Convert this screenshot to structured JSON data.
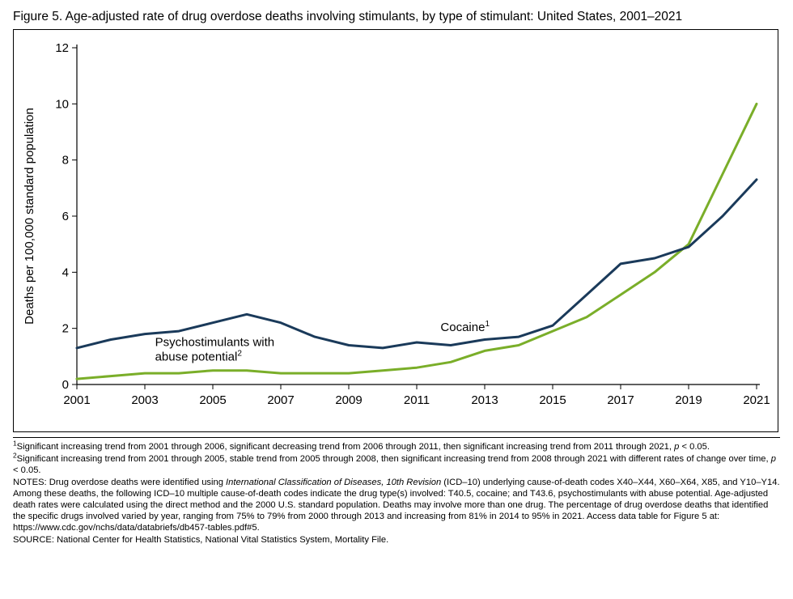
{
  "figure": {
    "title": "Figure 5. Age-adjusted rate of drug overdose deaths involving stimulants, by type of stimulant: United States, 2001–2021"
  },
  "chart": {
    "type": "line",
    "background_color": "#ffffff",
    "frame_border_color": "#000000",
    "xlim": [
      2001,
      2021
    ],
    "ylim": [
      0,
      12
    ],
    "xtick_step": 2,
    "xticks": [
      2001,
      2003,
      2005,
      2007,
      2009,
      2011,
      2013,
      2015,
      2017,
      2019,
      2021
    ],
    "ytick_step": 2,
    "yticks": [
      0,
      2,
      4,
      6,
      8,
      10,
      12
    ],
    "ylabel": "Deaths per 100,000 standard population",
    "axis_color": "#000000",
    "tick_color": "#000000",
    "tick_font_size": 15,
    "label_font_size": 15,
    "line_width": 3,
    "series": {
      "cocaine": {
        "label": "Cocaine",
        "superscript": "1",
        "color": "#1a3a5a",
        "years": [
          2001,
          2002,
          2003,
          2004,
          2005,
          2006,
          2007,
          2008,
          2009,
          2010,
          2011,
          2012,
          2013,
          2014,
          2015,
          2016,
          2017,
          2018,
          2019,
          2020,
          2021
        ],
        "values": [
          1.3,
          1.6,
          1.8,
          1.9,
          2.2,
          2.5,
          2.2,
          1.7,
          1.4,
          1.3,
          1.5,
          1.4,
          1.6,
          1.7,
          2.1,
          3.2,
          4.3,
          4.5,
          4.9,
          6.0,
          7.3
        ]
      },
      "psychostimulants": {
        "label_line1": "Psychostimulants with",
        "label_line2": "abuse potential",
        "superscript": "2",
        "color": "#7aae29",
        "years": [
          2001,
          2002,
          2003,
          2004,
          2005,
          2006,
          2007,
          2008,
          2009,
          2010,
          2011,
          2012,
          2013,
          2014,
          2015,
          2016,
          2017,
          2018,
          2019,
          2020,
          2021
        ],
        "values": [
          0.2,
          0.3,
          0.4,
          0.4,
          0.5,
          0.5,
          0.4,
          0.4,
          0.4,
          0.5,
          0.6,
          0.8,
          1.2,
          1.4,
          1.9,
          2.4,
          3.2,
          4.0,
          5.0,
          7.5,
          10.0
        ]
      }
    }
  },
  "footnotes": {
    "fn1_pre": "Significant increasing trend from 2001 through 2006, significant decreasing trend from 2006 through 2011, then significant increasing trend from 2011 through 2021, ",
    "fn1_p": "p",
    "fn1_post": " < 0.05.",
    "fn2_pre": "Significant increasing trend from 2001 through 2005, stable trend from 2005 through 2008, then significant increasing trend from 2008 through 2021 with different rates of change over time, ",
    "fn2_p": "p",
    "fn2_post": " < 0.05.",
    "notes_pre": "NOTES: Drug overdose deaths were identified using ",
    "notes_ital": "International Classification of Diseases, 10th Revision",
    "notes_post": " (ICD–10) underlying cause-of-death codes X40–X44, X60–X64, X85, and Y10–Y14. Among these deaths, the following ICD–10 multiple cause-of-death codes indicate the drug type(s) involved: T40.5, cocaine; and T43.6, psychostimulants with abuse potential. Age-adjusted death rates were calculated using the direct method and the 2000 U.S. standard population. Deaths may involve more than one drug. The percentage of drug overdose deaths that identified the specific drugs involved varied by year, ranging from 75% to 79% from 2000 through 2013 and increasing from 81% in 2014 to 95% in 2021. Access data table for Figure 5 at: https://www.cdc.gov/nchs/data/databriefs/db457-tables.pdf#5.",
    "source": "SOURCE: National Center for Health Statistics, National Vital Statistics System, Mortality File."
  }
}
